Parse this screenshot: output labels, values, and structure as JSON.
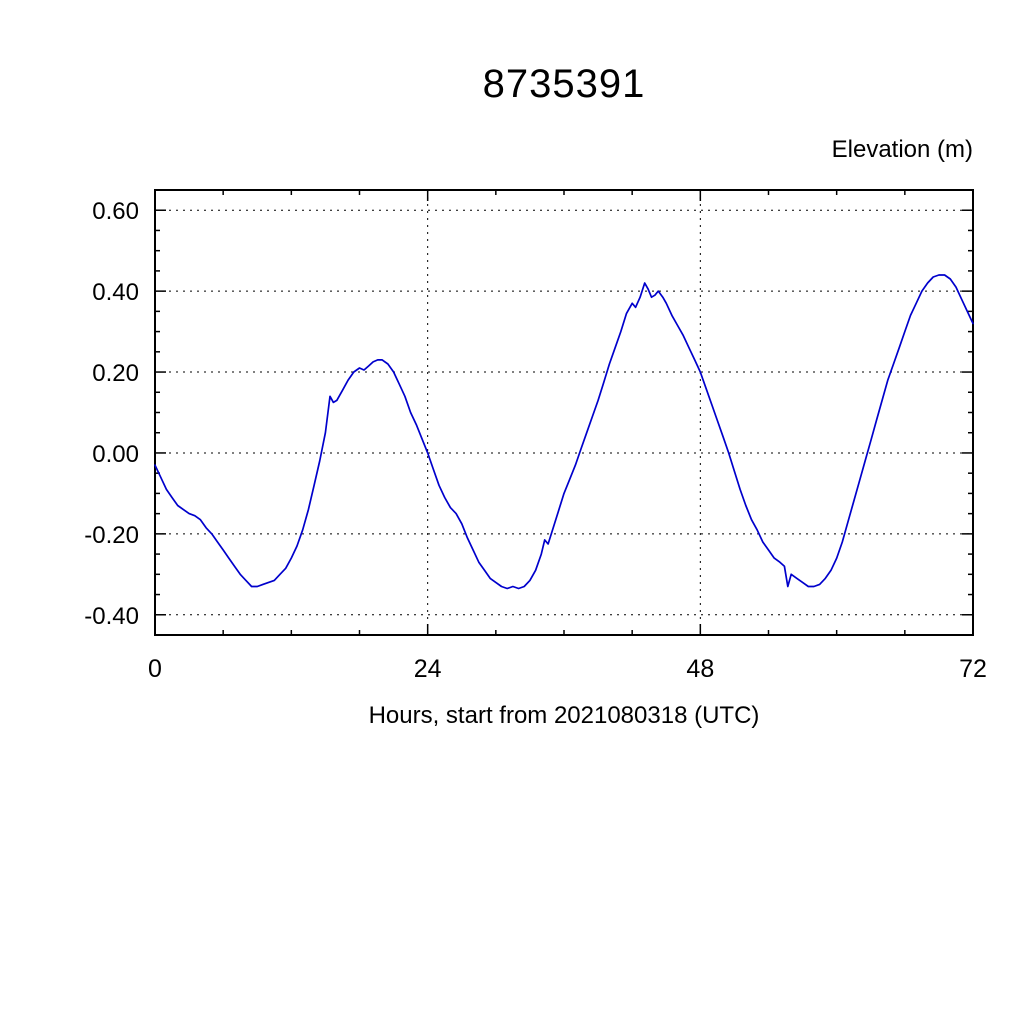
{
  "chart_data": {
    "type": "line",
    "title": "8735391",
    "ylabel": "Elevation (m)",
    "xlabel": "Hours, start from 2021080318 (UTC)",
    "xlim": [
      0,
      72
    ],
    "ylim": [
      -0.45,
      0.65
    ],
    "x_major_ticks": [
      0,
      24,
      48,
      72
    ],
    "y_major_ticks": [
      -0.4,
      -0.2,
      0.0,
      0.2,
      0.4,
      0.6
    ],
    "x_minor_step": 6,
    "y_minor_step": 0.05,
    "grid": "dashed",
    "line_color": "#0000cc",
    "series": [
      {
        "name": "elevation",
        "points": [
          [
            0,
            -0.03
          ],
          [
            0.5,
            -0.06
          ],
          [
            1,
            -0.09
          ],
          [
            1.5,
            -0.11
          ],
          [
            2,
            -0.13
          ],
          [
            2.5,
            -0.14
          ],
          [
            3,
            -0.15
          ],
          [
            3.5,
            -0.155
          ],
          [
            4,
            -0.165
          ],
          [
            4.5,
            -0.185
          ],
          [
            5,
            -0.2
          ],
          [
            5.5,
            -0.22
          ],
          [
            6,
            -0.24
          ],
          [
            6.5,
            -0.26
          ],
          [
            7,
            -0.28
          ],
          [
            7.5,
            -0.3
          ],
          [
            8,
            -0.315
          ],
          [
            8.5,
            -0.33
          ],
          [
            9,
            -0.33
          ],
          [
            9.5,
            -0.325
          ],
          [
            10,
            -0.32
          ],
          [
            10.5,
            -0.315
          ],
          [
            11,
            -0.3
          ],
          [
            11.5,
            -0.285
          ],
          [
            12,
            -0.26
          ],
          [
            12.5,
            -0.23
          ],
          [
            13,
            -0.19
          ],
          [
            13.5,
            -0.14
          ],
          [
            14,
            -0.08
          ],
          [
            14.5,
            -0.02
          ],
          [
            15,
            0.05
          ],
          [
            15.4,
            0.14
          ],
          [
            15.7,
            0.125
          ],
          [
            16,
            0.13
          ],
          [
            16.5,
            0.155
          ],
          [
            17,
            0.18
          ],
          [
            17.5,
            0.2
          ],
          [
            18,
            0.21
          ],
          [
            18.4,
            0.205
          ],
          [
            18.8,
            0.215
          ],
          [
            19.2,
            0.225
          ],
          [
            19.6,
            0.23
          ],
          [
            20,
            0.23
          ],
          [
            20.5,
            0.22
          ],
          [
            21,
            0.2
          ],
          [
            21.5,
            0.17
          ],
          [
            22,
            0.14
          ],
          [
            22.5,
            0.1
          ],
          [
            23,
            0.07
          ],
          [
            23.5,
            0.035
          ],
          [
            24,
            0.0
          ],
          [
            24.5,
            -0.04
          ],
          [
            25,
            -0.08
          ],
          [
            25.5,
            -0.11
          ],
          [
            26,
            -0.135
          ],
          [
            26.5,
            -0.15
          ],
          [
            27,
            -0.175
          ],
          [
            27.5,
            -0.21
          ],
          [
            28,
            -0.24
          ],
          [
            28.5,
            -0.27
          ],
          [
            29,
            -0.29
          ],
          [
            29.5,
            -0.31
          ],
          [
            30,
            -0.32
          ],
          [
            30.5,
            -0.33
          ],
          [
            31,
            -0.335
          ],
          [
            31.5,
            -0.33
          ],
          [
            32,
            -0.335
          ],
          [
            32.5,
            -0.33
          ],
          [
            33,
            -0.315
          ],
          [
            33.5,
            -0.29
          ],
          [
            34,
            -0.25
          ],
          [
            34.3,
            -0.215
          ],
          [
            34.6,
            -0.225
          ],
          [
            35,
            -0.19
          ],
          [
            35.5,
            -0.145
          ],
          [
            36,
            -0.1
          ],
          [
            36.5,
            -0.065
          ],
          [
            37,
            -0.03
          ],
          [
            37.5,
            0.01
          ],
          [
            38,
            0.05
          ],
          [
            38.5,
            0.09
          ],
          [
            39,
            0.13
          ],
          [
            39.5,
            0.175
          ],
          [
            40,
            0.22
          ],
          [
            40.5,
            0.26
          ],
          [
            41,
            0.3
          ],
          [
            41.5,
            0.345
          ],
          [
            42,
            0.37
          ],
          [
            42.3,
            0.36
          ],
          [
            42.7,
            0.385
          ],
          [
            43.1,
            0.42
          ],
          [
            43.4,
            0.405
          ],
          [
            43.7,
            0.385
          ],
          [
            44,
            0.39
          ],
          [
            44.3,
            0.4
          ],
          [
            44.7,
            0.385
          ],
          [
            45,
            0.37
          ],
          [
            45.5,
            0.34
          ],
          [
            46,
            0.315
          ],
          [
            46.5,
            0.29
          ],
          [
            47,
            0.26
          ],
          [
            47.5,
            0.23
          ],
          [
            48,
            0.2
          ],
          [
            48.5,
            0.16
          ],
          [
            49,
            0.12
          ],
          [
            49.5,
            0.08
          ],
          [
            50,
            0.04
          ],
          [
            50.5,
            0.0
          ],
          [
            51,
            -0.045
          ],
          [
            51.5,
            -0.09
          ],
          [
            52,
            -0.13
          ],
          [
            52.5,
            -0.165
          ],
          [
            53,
            -0.19
          ],
          [
            53.5,
            -0.22
          ],
          [
            54,
            -0.24
          ],
          [
            54.5,
            -0.26
          ],
          [
            55,
            -0.27
          ],
          [
            55.4,
            -0.28
          ],
          [
            55.7,
            -0.33
          ],
          [
            56,
            -0.3
          ],
          [
            56.5,
            -0.31
          ],
          [
            57,
            -0.32
          ],
          [
            57.5,
            -0.33
          ],
          [
            58,
            -0.33
          ],
          [
            58.5,
            -0.325
          ],
          [
            59,
            -0.31
          ],
          [
            59.5,
            -0.29
          ],
          [
            60,
            -0.26
          ],
          [
            60.5,
            -0.22
          ],
          [
            61,
            -0.17
          ],
          [
            61.5,
            -0.12
          ],
          [
            62,
            -0.07
          ],
          [
            62.5,
            -0.02
          ],
          [
            63,
            0.03
          ],
          [
            63.5,
            0.08
          ],
          [
            64,
            0.13
          ],
          [
            64.5,
            0.18
          ],
          [
            65,
            0.22
          ],
          [
            65.5,
            0.26
          ],
          [
            66,
            0.3
          ],
          [
            66.5,
            0.34
          ],
          [
            67,
            0.37
          ],
          [
            67.5,
            0.4
          ],
          [
            68,
            0.42
          ],
          [
            68.5,
            0.435
          ],
          [
            69,
            0.44
          ],
          [
            69.5,
            0.44
          ],
          [
            70,
            0.43
          ],
          [
            70.5,
            0.41
          ],
          [
            71,
            0.38
          ],
          [
            71.5,
            0.35
          ],
          [
            72,
            0.32
          ]
        ]
      }
    ]
  }
}
